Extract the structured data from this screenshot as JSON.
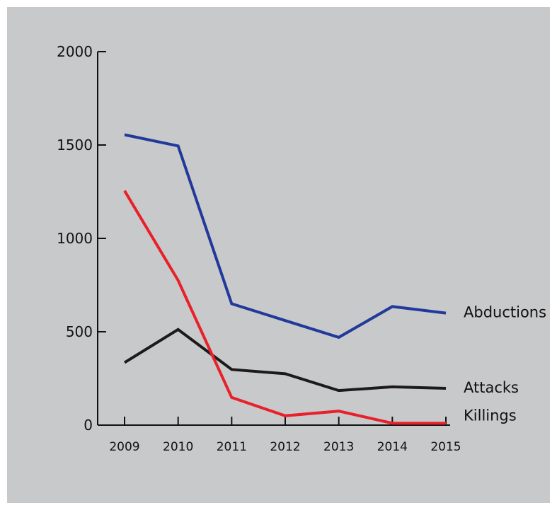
{
  "chart_data": {
    "type": "line",
    "title": "",
    "xlabel": "",
    "ylabel": "",
    "categories": [
      "2009",
      "2010",
      "2011",
      "2012",
      "2013",
      "2014",
      "2015"
    ],
    "ylim": [
      0,
      2000
    ],
    "yticks": [
      0,
      500,
      1000,
      1500,
      2000
    ],
    "grid": false,
    "legend": "end-of-line labels",
    "series": [
      {
        "name": "Abductions",
        "color": "#21399a",
        "values": [
          1555,
          1495,
          650,
          560,
          470,
          635,
          600
        ]
      },
      {
        "name": "Attacks",
        "color": "#1c1a1b",
        "values": [
          335,
          512,
          298,
          275,
          185,
          205,
          197
        ]
      },
      {
        "name": "Killings",
        "color": "#e8202a",
        "values": [
          1255,
          775,
          148,
          50,
          75,
          10,
          10
        ]
      }
    ]
  }
}
